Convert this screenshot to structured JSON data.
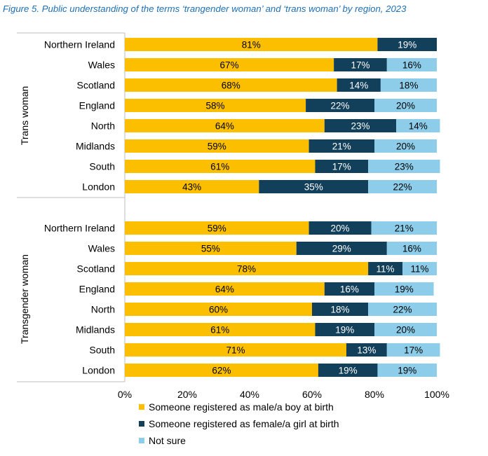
{
  "chart_data": {
    "type": "bar",
    "orientation": "horizontal-stacked",
    "title": "Figure 5. Public understanding of the terms ‘trangender woman’ and ‘trans woman’ by region, 2023",
    "xlabel": "",
    "ylabel": "",
    "xlim": [
      0,
      100
    ],
    "x_ticks": [
      "0%",
      "20%",
      "40%",
      "60%",
      "80%",
      "100%"
    ],
    "legend_position": "bottom-left",
    "series": [
      {
        "name": "Someone registered as male/a boy at birth",
        "color": "#fcbf00",
        "label_color": "#000000"
      },
      {
        "name": "Someone registered as female/a girl at birth",
        "color": "#123f5a",
        "label_color": "#ffffff"
      },
      {
        "name": "Not sure",
        "color": "#8ecdea",
        "label_color": "#000000"
      }
    ],
    "groups": [
      {
        "name": "Trans woman",
        "categories": [
          "Northern Ireland",
          "Wales",
          "Scotland",
          "England",
          "North",
          "Midlands",
          "South",
          "London"
        ],
        "values": [
          [
            81,
            19,
            0
          ],
          [
            67,
            17,
            16
          ],
          [
            68,
            14,
            18
          ],
          [
            58,
            22,
            20
          ],
          [
            64,
            23,
            14
          ],
          [
            59,
            21,
            20
          ],
          [
            61,
            17,
            23
          ],
          [
            43,
            35,
            22
          ]
        ]
      },
      {
        "name": "Transgender woman",
        "categories": [
          "Northern Ireland",
          "Wales",
          "Scotland",
          "England",
          "North",
          "Midlands",
          "South",
          "London"
        ],
        "values": [
          [
            59,
            20,
            21
          ],
          [
            55,
            29,
            16
          ],
          [
            78,
            11,
            11
          ],
          [
            64,
            16,
            19
          ],
          [
            60,
            18,
            22
          ],
          [
            61,
            19,
            20
          ],
          [
            71,
            13,
            17
          ],
          [
            62,
            19,
            19
          ]
        ]
      }
    ]
  }
}
